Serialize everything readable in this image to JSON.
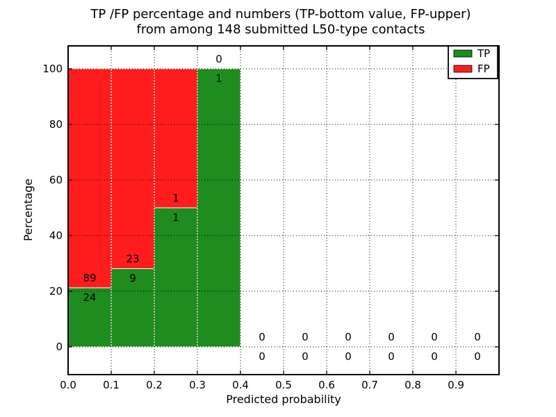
{
  "chart_data": {
    "type": "bar",
    "stacked": true,
    "orientation": "vertical",
    "title_line1": "TP /FP percentage and numbers (TP-bottom value, FP-upper)",
    "title_line2": "from among 148 submitted L50-type contacts",
    "submitted_total": 148,
    "xlabel": "Predicted probability",
    "ylabel": "Percentage",
    "xlim": [
      0.0,
      1.0
    ],
    "ylim": [
      -10,
      108
    ],
    "grid": "dotted-black-both-axes",
    "legend_position": "upper-right",
    "bar_edge_color": "#ffffff",
    "x_tick_labels": [
      "0.0",
      "0.1",
      "0.2",
      "0.3",
      "0.4",
      "0.5",
      "0.6",
      "0.7",
      "0.8",
      "0.9"
    ],
    "y_tick_labels": [
      "0",
      "20",
      "40",
      "60",
      "80",
      "100"
    ],
    "bin_edges": [
      0.0,
      0.1,
      0.2,
      0.3,
      0.4,
      0.5,
      0.6,
      0.7,
      0.8,
      0.9,
      1.0
    ],
    "series": [
      {
        "name": "TP",
        "color": "#1e8c1e",
        "role": "bottom-percentage-segment",
        "counts": [
          24,
          9,
          1,
          1,
          0,
          0,
          0,
          0,
          0,
          0
        ]
      },
      {
        "name": "FP",
        "color": "#ff1c1c",
        "role": "upper-percentage-segment",
        "counts": [
          89,
          23,
          1,
          0,
          0,
          0,
          0,
          0,
          0,
          0
        ]
      }
    ],
    "tp_percent_by_bin": [
      21.2,
      28.1,
      50.0,
      100.0,
      0,
      0,
      0,
      0,
      0,
      0
    ],
    "annotation_rule": "FP count printed above TP/FP boundary, TP count printed below it"
  }
}
